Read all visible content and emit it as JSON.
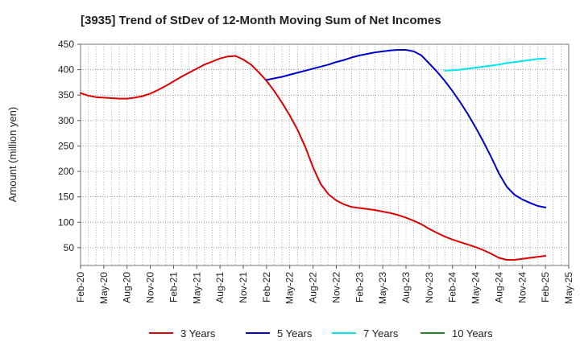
{
  "chart_data": {
    "type": "line",
    "title": "[3935]  Trend of StDev of 12-Month Moving Sum of Net Incomes",
    "xlabel": "",
    "ylabel": "Amount (million yen)",
    "ylim": [
      15,
      450
    ],
    "yticks": [
      50,
      100,
      150,
      200,
      250,
      300,
      350,
      400,
      450
    ],
    "x_range": [
      "Feb-20",
      "May-25"
    ],
    "x_tick_labels": [
      "Feb-20",
      "May-20",
      "Aug-20",
      "Nov-20",
      "Feb-21",
      "May-21",
      "Aug-21",
      "Nov-21",
      "Feb-22",
      "May-22",
      "Aug-22",
      "Nov-22",
      "Feb-23",
      "May-23",
      "Aug-23",
      "Nov-23",
      "Feb-24",
      "May-24",
      "Aug-24",
      "Nov-24",
      "Feb-25",
      "May-25"
    ],
    "grid": true,
    "legend_position": "bottom",
    "series": [
      {
        "name": "3 Years",
        "color": "#dd0000",
        "points": [
          [
            "Feb-20",
            354
          ],
          [
            "Mar-20",
            349
          ],
          [
            "Apr-20",
            346
          ],
          [
            "May-20",
            345
          ],
          [
            "Jun-20",
            344
          ],
          [
            "Jul-20",
            343
          ],
          [
            "Aug-20",
            343
          ],
          [
            "Sep-20",
            345
          ],
          [
            "Oct-20",
            348
          ],
          [
            "Nov-20",
            353
          ],
          [
            "Dec-20",
            360
          ],
          [
            "Jan-21",
            368
          ],
          [
            "Feb-21",
            377
          ],
          [
            "Mar-21",
            386
          ],
          [
            "Apr-21",
            394
          ],
          [
            "May-21",
            402
          ],
          [
            "Jun-21",
            410
          ],
          [
            "Jul-21",
            416
          ],
          [
            "Aug-21",
            422
          ],
          [
            "Sep-21",
            426
          ],
          [
            "Oct-21",
            427
          ],
          [
            "Nov-21",
            420
          ],
          [
            "Dec-21",
            410
          ],
          [
            "Jan-22",
            395
          ],
          [
            "Feb-22",
            378
          ],
          [
            "Mar-22",
            358
          ],
          [
            "Apr-22",
            335
          ],
          [
            "May-22",
            310
          ],
          [
            "Jun-22",
            282
          ],
          [
            "Jul-22",
            248
          ],
          [
            "Aug-22",
            208
          ],
          [
            "Sep-22",
            175
          ],
          [
            "Oct-22",
            155
          ],
          [
            "Nov-22",
            143
          ],
          [
            "Dec-22",
            135
          ],
          [
            "Jan-23",
            130
          ],
          [
            "Feb-23",
            128
          ],
          [
            "Mar-23",
            126
          ],
          [
            "Apr-23",
            124
          ],
          [
            "May-23",
            121
          ],
          [
            "Jun-23",
            118
          ],
          [
            "Jul-23",
            114
          ],
          [
            "Aug-23",
            109
          ],
          [
            "Sep-23",
            103
          ],
          [
            "Oct-23",
            96
          ],
          [
            "Nov-23",
            87
          ],
          [
            "Dec-23",
            79
          ],
          [
            "Jan-24",
            72
          ],
          [
            "Feb-24",
            66
          ],
          [
            "Mar-24",
            61
          ],
          [
            "Apr-24",
            56
          ],
          [
            "May-24",
            51
          ],
          [
            "Jun-24",
            45
          ],
          [
            "Jul-24",
            38
          ],
          [
            "Aug-24",
            30
          ],
          [
            "Sep-24",
            26
          ],
          [
            "Oct-24",
            26
          ],
          [
            "Nov-24",
            28
          ],
          [
            "Dec-24",
            30
          ],
          [
            "Jan-25",
            32
          ],
          [
            "Feb-25",
            34
          ]
        ]
      },
      {
        "name": "5 Years",
        "color": "#0000cc",
        "points": [
          [
            "Feb-22",
            380
          ],
          [
            "Mar-22",
            383
          ],
          [
            "Apr-22",
            386
          ],
          [
            "May-22",
            390
          ],
          [
            "Jun-22",
            394
          ],
          [
            "Jul-22",
            398
          ],
          [
            "Aug-22",
            402
          ],
          [
            "Sep-22",
            406
          ],
          [
            "Oct-22",
            410
          ],
          [
            "Nov-22",
            415
          ],
          [
            "Dec-22",
            419
          ],
          [
            "Jan-23",
            424
          ],
          [
            "Feb-23",
            428
          ],
          [
            "Mar-23",
            431
          ],
          [
            "Apr-23",
            434
          ],
          [
            "May-23",
            436
          ],
          [
            "Jun-23",
            438
          ],
          [
            "Jul-23",
            439
          ],
          [
            "Aug-23",
            439
          ],
          [
            "Sep-23",
            436
          ],
          [
            "Oct-23",
            428
          ],
          [
            "Nov-23",
            412
          ],
          [
            "Dec-23",
            396
          ],
          [
            "Jan-24",
            378
          ],
          [
            "Feb-24",
            358
          ],
          [
            "Mar-24",
            336
          ],
          [
            "Apr-24",
            312
          ],
          [
            "May-24",
            286
          ],
          [
            "Jun-24",
            258
          ],
          [
            "Jul-24",
            228
          ],
          [
            "Aug-24",
            196
          ],
          [
            "Sep-24",
            170
          ],
          [
            "Oct-24",
            154
          ],
          [
            "Nov-24",
            145
          ],
          [
            "Dec-24",
            138
          ],
          [
            "Jan-25",
            132
          ],
          [
            "Feb-25",
            129
          ]
        ]
      },
      {
        "name": "7 Years",
        "color": "#00e5ee",
        "points": [
          [
            "Jan-24",
            398
          ],
          [
            "Feb-24",
            399
          ],
          [
            "Mar-24",
            400
          ],
          [
            "Apr-24",
            402
          ],
          [
            "May-24",
            404
          ],
          [
            "Jun-24",
            406
          ],
          [
            "Jul-24",
            408
          ],
          [
            "Aug-24",
            410
          ],
          [
            "Sep-24",
            413
          ],
          [
            "Oct-24",
            415
          ],
          [
            "Nov-24",
            417
          ],
          [
            "Dec-24",
            419
          ],
          [
            "Jan-25",
            421
          ],
          [
            "Feb-25",
            422
          ]
        ]
      },
      {
        "name": "10 Years",
        "color": "#228822",
        "points": []
      }
    ]
  }
}
